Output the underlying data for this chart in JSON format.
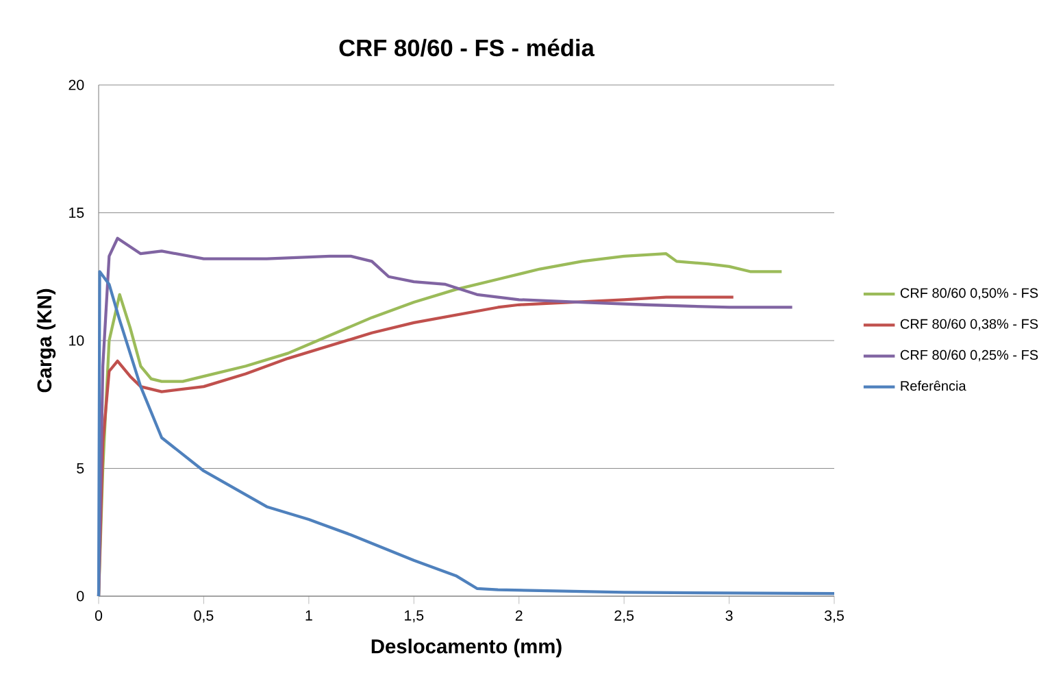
{
  "chart_data": {
    "type": "line",
    "title": "CRF 80/60 - FS - média",
    "xlabel": "Deslocamento (mm)",
    "ylabel": "Carga (KN)",
    "xlim": [
      0,
      3.5
    ],
    "ylim": [
      0,
      20
    ],
    "xticks": [
      0,
      {
        "value": 0.5,
        "label": "0,5"
      },
      1,
      {
        "value": 1.5,
        "label": "1,5"
      },
      2,
      {
        "value": 2.5,
        "label": "2,5"
      },
      3,
      {
        "value": 3.5,
        "label": "3,5"
      }
    ],
    "yticks": [
      0,
      5,
      10,
      15,
      20
    ],
    "grid": "y",
    "legend": "right",
    "marker": "none",
    "line_style": "solid",
    "series": [
      {
        "name": "CRF 80/60 0,50% - FS",
        "color": "#9bbb59",
        "x": [
          0,
          0.02,
          0.05,
          0.1,
          0.15,
          0.2,
          0.25,
          0.3,
          0.4,
          0.5,
          0.7,
          0.9,
          1.1,
          1.3,
          1.5,
          1.7,
          1.9,
          2.1,
          2.3,
          2.5,
          2.7,
          2.75,
          2.9,
          3.0,
          3.1,
          3.25
        ],
        "values": [
          0,
          5,
          10,
          11.8,
          10.5,
          9,
          8.5,
          8.4,
          8.4,
          8.6,
          9.0,
          9.5,
          10.2,
          10.9,
          11.5,
          12.0,
          12.4,
          12.8,
          13.1,
          13.3,
          13.4,
          13.1,
          13.0,
          12.9,
          12.7,
          12.7
        ]
      },
      {
        "name": "CRF 80/60 0,38% - FS",
        "color": "#c0504d",
        "x": [
          0,
          0.02,
          0.05,
          0.09,
          0.15,
          0.2,
          0.3,
          0.5,
          0.7,
          0.9,
          1.1,
          1.3,
          1.5,
          1.7,
          1.9,
          2.0,
          2.5,
          2.7,
          3.02
        ],
        "values": [
          0,
          6,
          8.8,
          9.2,
          8.6,
          8.2,
          8.0,
          8.2,
          8.7,
          9.3,
          9.8,
          10.3,
          10.7,
          11.0,
          11.3,
          11.4,
          11.6,
          11.7,
          11.7
        ]
      },
      {
        "name": "CRF 80/60 0,25% - FS",
        "color": "#8064a2",
        "x": [
          0,
          0.02,
          0.05,
          0.09,
          0.2,
          0.3,
          0.5,
          0.8,
          1.1,
          1.2,
          1.3,
          1.38,
          1.5,
          1.65,
          1.8,
          2.0,
          2.3,
          2.6,
          3.0,
          3.3
        ],
        "values": [
          0,
          9,
          13.3,
          14.0,
          13.4,
          13.5,
          13.2,
          13.2,
          13.3,
          13.3,
          13.1,
          12.5,
          12.3,
          12.2,
          11.8,
          11.6,
          11.5,
          11.4,
          11.3,
          11.3
        ]
      },
      {
        "name": "Referência",
        "color": "#4f81bd",
        "x": [
          0,
          0.005,
          0.05,
          0.1,
          0.2,
          0.3,
          0.5,
          0.8,
          1.0,
          1.2,
          1.5,
          1.7,
          1.8,
          1.9,
          2.5,
          3.5
        ],
        "values": [
          0,
          12.7,
          12.2,
          10.8,
          8.2,
          6.2,
          4.9,
          3.5,
          3.0,
          2.4,
          1.4,
          0.8,
          0.3,
          0.25,
          0.15,
          0.1
        ]
      }
    ]
  }
}
